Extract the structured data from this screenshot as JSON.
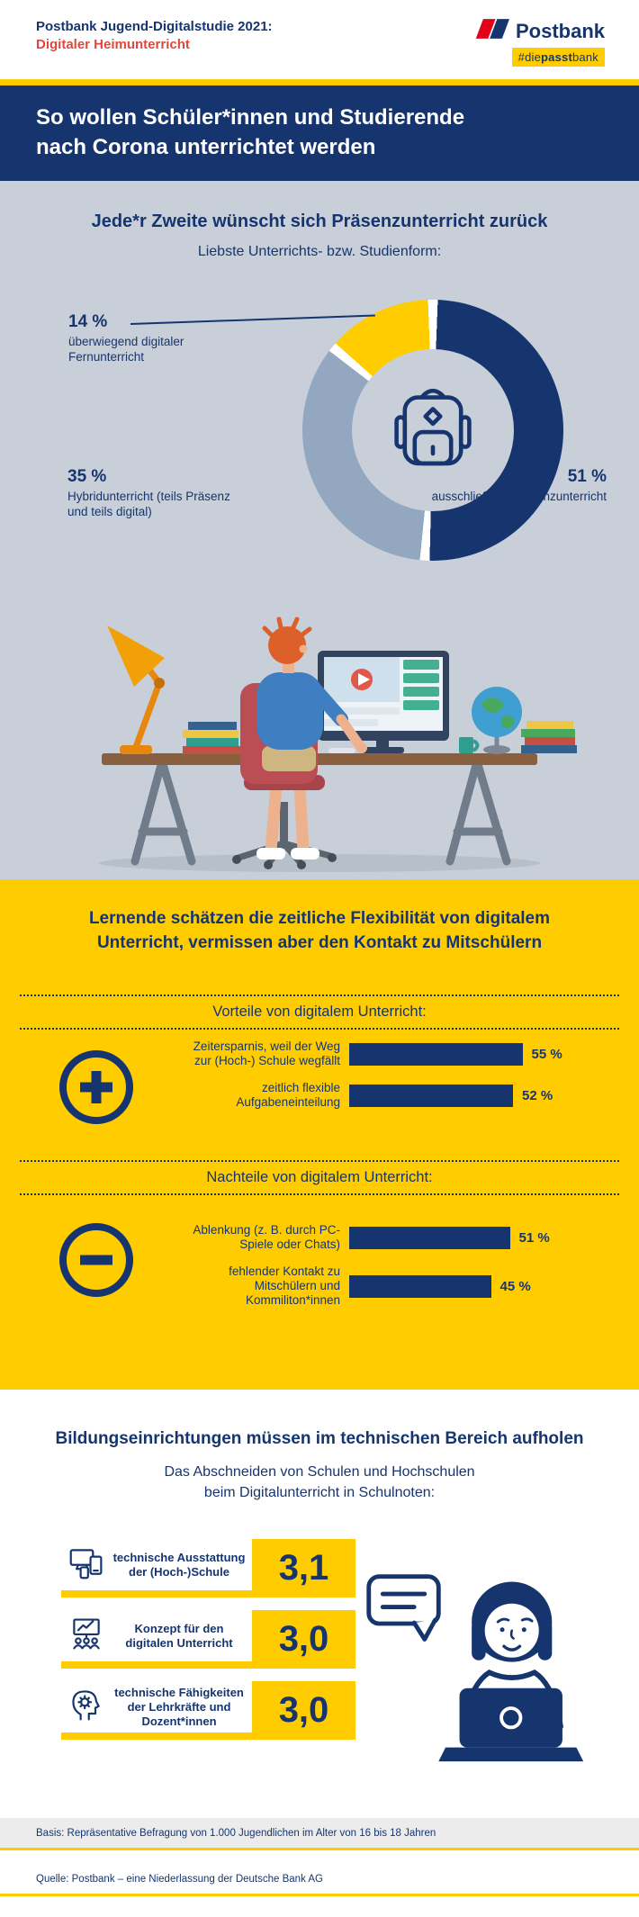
{
  "colors": {
    "navy": "#16356e",
    "yellow": "#ffcc00",
    "red": "#e2473c",
    "gray_bg": "#c8cfd8",
    "light_blue": "#93a7c0"
  },
  "header": {
    "study_line1": "Postbank Jugend-Digitalstudie 2021:",
    "study_line2": "Digitaler Heimunterricht",
    "brand": "Postbank",
    "hashtag_pre": "#die",
    "hashtag_mid": "passt",
    "hashtag_post": "bank"
  },
  "banner": {
    "line1": "So wollen Schüler*innen und Studierende",
    "line2": "nach Corona unterrichtet werden"
  },
  "presence": {
    "title": "Jede*r Zweite wünscht sich Präsenzunterricht zurück",
    "subtitle": "Liebste Unterrichts- bzw. Studienform:",
    "labels": {
      "remote": {
        "pct": "14 %",
        "text": "überwiegend digitaler Fernunterricht"
      },
      "hybrid": {
        "pct": "35 %",
        "text": "Hybridunterricht (teils Präsenz und teils digital)"
      },
      "inperson": {
        "pct": "51 %",
        "text": "ausschließlich Präsenzunterricht"
      }
    }
  },
  "flex": {
    "title1": "Lernende schätzen die zeitliche Flexibilität von digitalem",
    "title2": "Unterricht, vermissen aber den Kontakt zu Mitschülern",
    "advantages": {
      "heading": "Vorteile von digitalem Unterricht:",
      "items": [
        {
          "label": "Zeitersparnis, weil der Weg zur (Hoch-) Schule wegfällt",
          "value": 55,
          "value_label": "55 %"
        },
        {
          "label": "zeitlich flexible Aufgabeneinteilung",
          "value": 52,
          "value_label": "52 %"
        }
      ]
    },
    "disadvantages": {
      "heading": "Nachteile von digitalem Unterricht:",
      "items": [
        {
          "label": "Ablenkung (z. B. durch PC-Spiele oder Chats)",
          "value": 51,
          "value_label": "51 %"
        },
        {
          "label": "fehlender Kontakt zu Mitschülern und Kommiliton*innen",
          "value": 45,
          "value_label": "45 %"
        }
      ]
    }
  },
  "grades": {
    "title": "Bildungseinrichtungen müssen im technischen Bereich aufholen",
    "subtitle1": "Das Abschneiden von Schulen und Hochschulen",
    "subtitle2": "beim Digitalunterricht in Schulnoten:",
    "items": [
      {
        "label": "technische Ausstattung der (Hoch-)Schule",
        "grade": "3,1",
        "icon": "devices-icon"
      },
      {
        "label": "Konzept für den digitalen Unterricht",
        "grade": "3,0",
        "icon": "presentation-icon"
      },
      {
        "label": "technische Fähigkeiten der Lehrkräfte und Dozent*innen",
        "grade": "3,0",
        "icon": "head-gear-icon"
      }
    ]
  },
  "footer": {
    "basis": "Basis: Repräsentative Befragung von 1.000 Jugendlichen im Alter von 16 bis 18 Jahren",
    "source": "Quelle: Postbank – eine Niederlassung der Deutsche Bank AG"
  },
  "chart_data": [
    {
      "type": "pie",
      "donut": true,
      "title": "Liebste Unterrichts- bzw. Studienform:",
      "labels": [
        "ausschließlich Präsenzunterricht",
        "Hybridunterricht (teils Präsenz und teils digital)",
        "überwiegend digitaler Fernunterricht"
      ],
      "values": [
        51,
        35,
        14
      ],
      "colors": [
        "#16356e",
        "#93a7c0",
        "#ffcc00"
      ]
    },
    {
      "type": "bar",
      "orientation": "horizontal",
      "title": "Vorteile von digitalem Unterricht:",
      "categories": [
        "Zeitersparnis, weil der Weg zur (Hoch-) Schule wegfällt",
        "zeitlich flexible Aufgabeneinteilung"
      ],
      "values": [
        55,
        52
      ],
      "unit": "%",
      "xlim": [
        0,
        100
      ]
    },
    {
      "type": "bar",
      "orientation": "horizontal",
      "title": "Nachteile von digitalem Unterricht:",
      "categories": [
        "Ablenkung (z. B. durch PC-Spiele oder Chats)",
        "fehlender Kontakt zu Mitschülern und Kommiliton*innen"
      ],
      "values": [
        51,
        45
      ],
      "unit": "%",
      "xlim": [
        0,
        100
      ]
    },
    {
      "type": "table",
      "title": "Das Abschneiden von Schulen und Hochschulen beim Digitalunterricht in Schulnoten:",
      "categories": [
        "technische Ausstattung der (Hoch-)Schule",
        "Konzept für den digitalen Unterricht",
        "technische Fähigkeiten der Lehrkräfte und Dozent*innen"
      ],
      "values": [
        "3,1",
        "3,0",
        "3,0"
      ]
    }
  ]
}
